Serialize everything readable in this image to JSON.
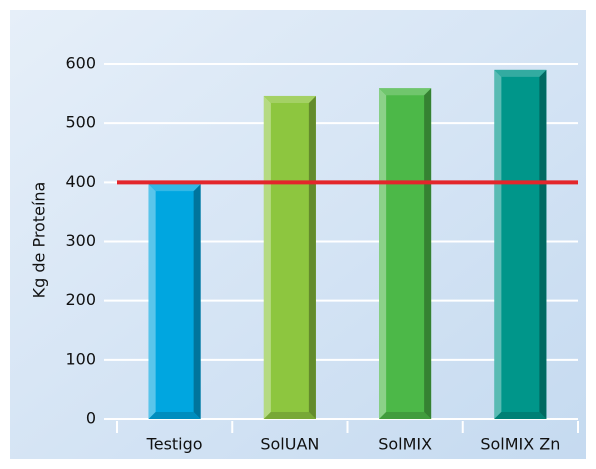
{
  "chart_data": {
    "type": "bar",
    "ylabel": "Kg de Proteína",
    "categories": [
      "Testigo",
      "SolUAN",
      "SolMIX",
      "SolMIX Zn"
    ],
    "values": [
      397,
      546,
      559,
      590
    ],
    "colors": [
      "#00a6e0",
      "#8dc63f",
      "#4cb848",
      "#00968a"
    ],
    "ylim": [
      0,
      600
    ],
    "yticks": [
      0,
      100,
      200,
      300,
      400,
      500,
      600
    ],
    "grid": true,
    "reference_line": {
      "value": 400,
      "color": "#e3262b"
    }
  }
}
